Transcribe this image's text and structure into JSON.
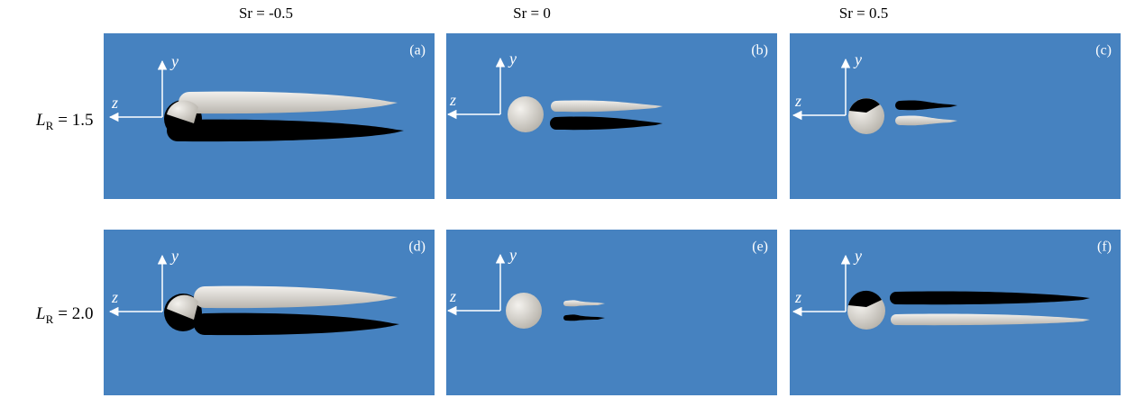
{
  "columns": [
    "Sr = -0.5",
    "Sr = 0",
    "Sr = 0.5"
  ],
  "rows": [
    {
      "symbol": "L",
      "subscript": "R",
      "value": "= 1.5"
    },
    {
      "symbol": "L",
      "subscript": "R",
      "value": "= 2.0"
    }
  ],
  "axes": {
    "y": "y",
    "z": "z"
  },
  "panels": [
    {
      "label": "(a)"
    },
    {
      "label": "(b)"
    },
    {
      "label": "(c)"
    },
    {
      "label": "(d)"
    },
    {
      "label": "(e)"
    },
    {
      "label": "(f)"
    }
  ]
}
